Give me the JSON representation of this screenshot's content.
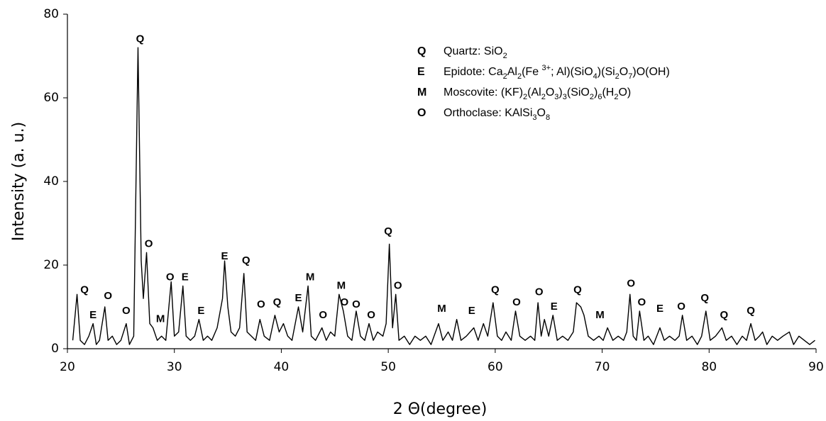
{
  "chart_data": {
    "type": "line",
    "x_label": "2 Θ(degree)",
    "y_label": "Intensity (a. u.)",
    "xlim": [
      20,
      90
    ],
    "xticks": [
      20,
      30,
      40,
      50,
      60,
      70,
      80,
      90
    ],
    "ylim": [
      0,
      80
    ],
    "yticks": [
      0,
      20,
      40,
      60,
      80
    ],
    "x": [
      20.5,
      20.9,
      21.2,
      21.6,
      22.0,
      22.4,
      22.7,
      23.0,
      23.5,
      23.8,
      24.2,
      24.6,
      25.0,
      25.5,
      25.8,
      26.2,
      26.6,
      26.9,
      27.1,
      27.4,
      27.7,
      28.0,
      28.4,
      28.8,
      29.2,
      29.7,
      30.0,
      30.4,
      30.8,
      31.1,
      31.5,
      31.9,
      32.3,
      32.7,
      33.1,
      33.5,
      34.0,
      34.5,
      34.7,
      35.0,
      35.3,
      35.7,
      36.1,
      36.5,
      36.8,
      37.2,
      37.6,
      38.0,
      38.4,
      38.9,
      39.4,
      39.8,
      40.2,
      40.6,
      41.0,
      41.6,
      42.0,
      42.5,
      42.8,
      43.2,
      43.8,
      44.2,
      44.6,
      45.0,
      45.4,
      45.8,
      46.2,
      46.6,
      47.0,
      47.4,
      47.8,
      48.2,
      48.6,
      49.0,
      49.5,
      49.8,
      50.1,
      50.4,
      50.7,
      51.0,
      51.5,
      52.0,
      52.5,
      53.0,
      53.5,
      54.0,
      54.7,
      55.1,
      55.6,
      56.0,
      56.4,
      56.8,
      57.3,
      58.0,
      58.4,
      58.9,
      59.3,
      59.8,
      60.2,
      60.6,
      61.0,
      61.5,
      61.9,
      62.3,
      62.8,
      63.3,
      63.7,
      64.0,
      64.3,
      64.6,
      65.0,
      65.4,
      65.8,
      66.3,
      66.8,
      67.3,
      67.6,
      68.0,
      68.3,
      68.7,
      69.2,
      69.7,
      70.1,
      70.5,
      71.0,
      71.5,
      72.0,
      72.3,
      72.6,
      72.9,
      73.2,
      73.5,
      73.9,
      74.3,
      74.8,
      75.4,
      75.8,
      76.3,
      76.8,
      77.2,
      77.5,
      77.9,
      78.4,
      78.9,
      79.3,
      79.7,
      80.1,
      80.6,
      81.2,
      81.6,
      82.1,
      82.6,
      83.1,
      83.5,
      83.9,
      84.3,
      84.7,
      85.0,
      85.4,
      85.9,
      86.4,
      86.9,
      87.5,
      87.9,
      88.4,
      88.9,
      89.4,
      89.9
    ],
    "series": [
      {
        "color": "#000000",
        "values": [
          2,
          13,
          2,
          1,
          3,
          6,
          1,
          2,
          10,
          2,
          3,
          1,
          2,
          6,
          1,
          3,
          72,
          21,
          12,
          23,
          6,
          5,
          2,
          3,
          2,
          16,
          3,
          4,
          15,
          3,
          2,
          3,
          7,
          2,
          3,
          2,
          5,
          12,
          21,
          10,
          4,
          3,
          5,
          18,
          4,
          3,
          2,
          7,
          3,
          2,
          8,
          4,
          6,
          3,
          2,
          10,
          4,
          15,
          3,
          2,
          5,
          2,
          4,
          3,
          13,
          9,
          3,
          2,
          9,
          3,
          2,
          6,
          2,
          4,
          3,
          6,
          25,
          5,
          13,
          2,
          3,
          1,
          3,
          2,
          3,
          1,
          6,
          2,
          4,
          2,
          7,
          2,
          3,
          5,
          2,
          6,
          3,
          11,
          3,
          2,
          4,
          2,
          9,
          3,
          2,
          3,
          2,
          11,
          3,
          7,
          3,
          8,
          2,
          3,
          2,
          4,
          11,
          10,
          8,
          3,
          2,
          3,
          2,
          5,
          2,
          3,
          2,
          4,
          13,
          3,
          2,
          9,
          2,
          3,
          1,
          5,
          2,
          3,
          2,
          3,
          8,
          2,
          3,
          1,
          3,
          9,
          2,
          3,
          5,
          2,
          3,
          1,
          3,
          2,
          6,
          2,
          3,
          4,
          1,
          3,
          2,
          3,
          4,
          1,
          3,
          2,
          1,
          2
        ]
      }
    ],
    "annotations": [
      {
        "text": "Q",
        "x": 21.6,
        "y": 14
      },
      {
        "text": "E",
        "x": 22.4,
        "y": 8
      },
      {
        "text": "O",
        "x": 23.8,
        "y": 12.5
      },
      {
        "text": "O",
        "x": 25.5,
        "y": 9
      },
      {
        "text": "Q",
        "x": 26.8,
        "y": 74
      },
      {
        "text": "O",
        "x": 27.6,
        "y": 25
      },
      {
        "text": "M",
        "x": 28.7,
        "y": 7
      },
      {
        "text": "O",
        "x": 29.6,
        "y": 17
      },
      {
        "text": "E",
        "x": 31.0,
        "y": 17
      },
      {
        "text": "E",
        "x": 32.5,
        "y": 9
      },
      {
        "text": "E",
        "x": 34.7,
        "y": 22
      },
      {
        "text": "Q",
        "x": 36.7,
        "y": 21
      },
      {
        "text": "O",
        "x": 38.1,
        "y": 10.5
      },
      {
        "text": "Q",
        "x": 39.6,
        "y": 11
      },
      {
        "text": "E",
        "x": 41.6,
        "y": 12
      },
      {
        "text": "M",
        "x": 42.7,
        "y": 17
      },
      {
        "text": "O",
        "x": 43.9,
        "y": 8
      },
      {
        "text": "M",
        "x": 45.6,
        "y": 15
      },
      {
        "text": "O",
        "x": 45.9,
        "y": 11
      },
      {
        "text": "O",
        "x": 47.0,
        "y": 10.5
      },
      {
        "text": "O",
        "x": 48.4,
        "y": 8
      },
      {
        "text": "Q",
        "x": 50.0,
        "y": 28
      },
      {
        "text": "O",
        "x": 50.9,
        "y": 15
      },
      {
        "text": "M",
        "x": 55.0,
        "y": 9.5
      },
      {
        "text": "E",
        "x": 57.8,
        "y": 9
      },
      {
        "text": "Q",
        "x": 60.0,
        "y": 14
      },
      {
        "text": "O",
        "x": 62.0,
        "y": 11
      },
      {
        "text": "O",
        "x": 64.1,
        "y": 13.5
      },
      {
        "text": "E",
        "x": 65.5,
        "y": 10
      },
      {
        "text": "Q",
        "x": 67.7,
        "y": 14
      },
      {
        "text": "M",
        "x": 69.8,
        "y": 8
      },
      {
        "text": "O",
        "x": 72.7,
        "y": 15.5
      },
      {
        "text": "O",
        "x": 73.7,
        "y": 11
      },
      {
        "text": "E",
        "x": 75.4,
        "y": 9.5
      },
      {
        "text": "O",
        "x": 77.4,
        "y": 10
      },
      {
        "text": "Q",
        "x": 79.6,
        "y": 12
      },
      {
        "text": "Q",
        "x": 81.4,
        "y": 8
      },
      {
        "text": "Q",
        "x": 83.9,
        "y": 9
      }
    ],
    "phase_legend": [
      {
        "symbol": "Q",
        "parts": [
          {
            "text": "Quartz: SiO"
          },
          {
            "sub": "2"
          }
        ]
      },
      {
        "symbol": "E",
        "parts": [
          {
            "text": "Epidote: Ca"
          },
          {
            "sub": "2"
          },
          {
            "text": "Al"
          },
          {
            "sub": "2"
          },
          {
            "text": "(Fe "
          },
          {
            "sup": "3+"
          },
          {
            "text": "; Al)(SiO"
          },
          {
            "sub": "4"
          },
          {
            "text": ")(Si"
          },
          {
            "sub": "2"
          },
          {
            "text": "O"
          },
          {
            "sub": "7"
          },
          {
            "text": ")O(OH)"
          }
        ]
      },
      {
        "symbol": "M",
        "parts": [
          {
            "text": "Moscovite: (KF)"
          },
          {
            "sub": "2"
          },
          {
            "text": "(Al"
          },
          {
            "sub": "2"
          },
          {
            "text": "O"
          },
          {
            "sub": "3"
          },
          {
            "text": ")"
          },
          {
            "sub": "3"
          },
          {
            "text": "(SiO"
          },
          {
            "sub": "2"
          },
          {
            "text": ")"
          },
          {
            "sub": "6"
          },
          {
            "text": "(H"
          },
          {
            "sub": "2"
          },
          {
            "text": "O)"
          }
        ]
      },
      {
        "symbol": "O",
        "parts": [
          {
            "text": "Orthoclase: KAlSi"
          },
          {
            "sub": "3"
          },
          {
            "text": "O"
          },
          {
            "sub": "8"
          }
        ]
      }
    ]
  }
}
